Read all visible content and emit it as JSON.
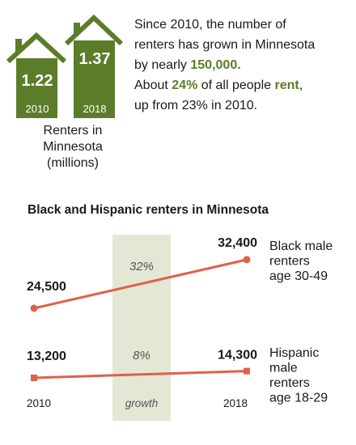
{
  "houses": {
    "items": [
      {
        "value": "1.22",
        "year": "2010"
      },
      {
        "value": "1.37",
        "year": "2018"
      }
    ],
    "caption_lines": [
      "Renters in",
      "Minnesota",
      "(millions)"
    ],
    "color": "#5b7d2a"
  },
  "summary": {
    "line1": "Since 2010, the number of",
    "line2": "renters has grown in Minnesota",
    "line3_prefix": "by nearly ",
    "line3_highlight": "150,000.",
    "line4_prefix": "About ",
    "line4_highlight1": "24%",
    "line4_mid": " of all people ",
    "line4_highlight2": "rent",
    "line4_suffix": ",",
    "line5": "up from 23% in 2010."
  },
  "chart_data": {
    "type": "line",
    "title": "Black and Hispanic renters in Minnesota",
    "x": [
      "2010",
      "2018"
    ],
    "growth_label": "growth",
    "series": [
      {
        "name": "Black male renters age 30-49",
        "name_lines": [
          "Black male",
          "renters",
          "age 30-49"
        ],
        "values": [
          24500,
          32400
        ],
        "value_labels": [
          "24,500",
          "32,400"
        ],
        "growth": "32%",
        "marker": "circle"
      },
      {
        "name": "Hispanic male renters age 18-29",
        "name_lines": [
          "Hispanic",
          "male",
          "renters",
          "age 18-29"
        ],
        "values": [
          13200,
          14300
        ],
        "value_labels": [
          "13,200",
          "14,300"
        ],
        "growth": "8%",
        "marker": "square"
      }
    ],
    "colors": {
      "line": "#e0604a",
      "band": "#e3e8d5",
      "house": "#5b7d2a"
    }
  }
}
